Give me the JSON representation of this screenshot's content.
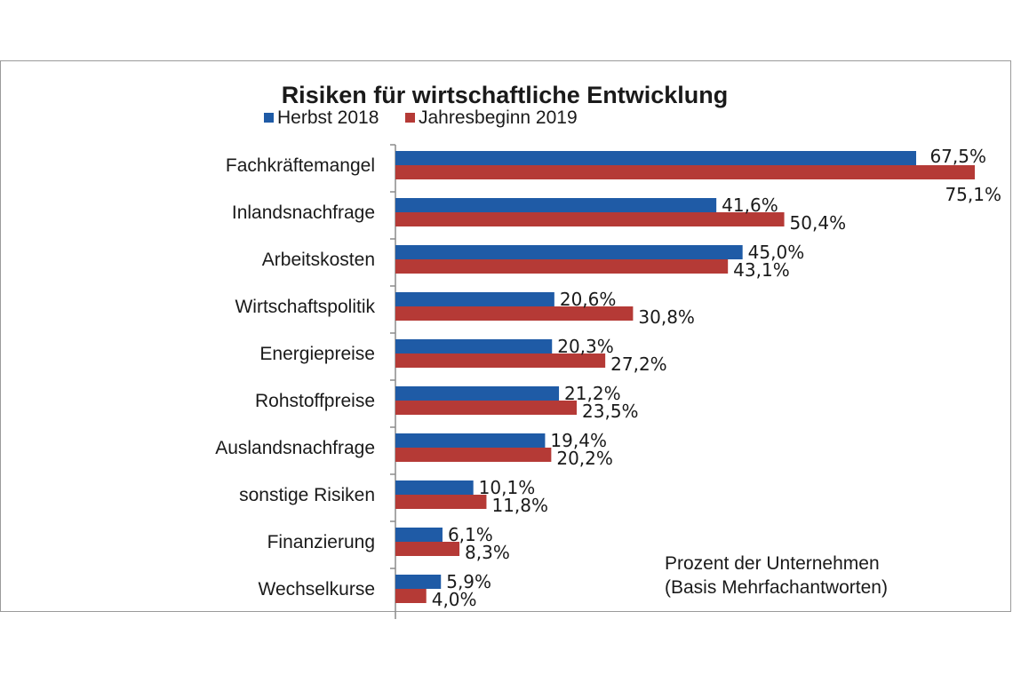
{
  "chart_data": {
    "type": "bar",
    "orientation": "horizontal",
    "title": "Risiken für wirtschaftliche Entwicklung",
    "categories": [
      "Fachkräftemangel",
      "Inlandsnachfrage",
      "Arbeitskosten",
      "Wirtschaftspolitik",
      "Energiepreise",
      "Rohstoffpreise",
      "Auslandsnachfrage",
      "sonstige Risiken",
      "Finanzierung",
      "Wechselkurse"
    ],
    "series": [
      {
        "name": "Herbst 2018",
        "color": "#1f5ba6",
        "values": [
          67.5,
          41.6,
          45.0,
          20.6,
          20.3,
          21.2,
          19.4,
          10.1,
          6.1,
          5.9
        ],
        "labels": [
          "67,5%",
          "41,6%",
          "45,0%",
          "20,6%",
          "20,3%",
          "21,2%",
          "19,4%",
          "10,1%",
          "6,1%",
          "5,9%"
        ]
      },
      {
        "name": "Jahresbeginn 2019",
        "color": "#b53a36",
        "values": [
          75.1,
          50.4,
          43.1,
          30.8,
          27.2,
          23.5,
          20.2,
          11.8,
          8.3,
          4.0
        ],
        "labels": [
          "75,1%",
          "50,4%",
          "43,1%",
          "30,8%",
          "27,2%",
          "23,5%",
          "20,2%",
          "11,8%",
          "8,3%",
          "4,0%"
        ]
      }
    ],
    "xlim": [
      0,
      75.1
    ],
    "legend_position": "top-left",
    "grid": false,
    "note": [
      "Prozent der Unternehmen",
      "(Basis Mehrfachantworten)"
    ]
  }
}
